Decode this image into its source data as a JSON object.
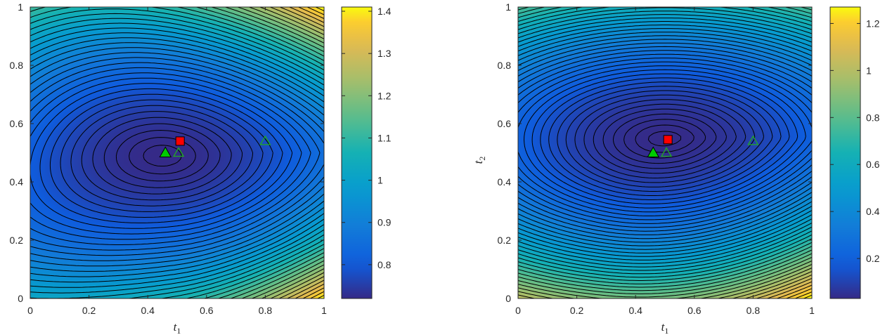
{
  "chart_data": [
    {
      "type": "contour",
      "xlabel": "t",
      "xlabel_sub": "1",
      "ylabel": "",
      "ylabel_sub": "",
      "xlim": [
        0,
        1
      ],
      "ylim": [
        0,
        1
      ],
      "xticks": [
        "0",
        "0.2",
        "0.4",
        "0.6",
        "0.8",
        "1"
      ],
      "yticks": [
        "0",
        "0.2",
        "0.4",
        "0.6",
        "0.8",
        "1"
      ],
      "colormap": "parula",
      "colorbar": {
        "min": 0.72,
        "max": 1.41,
        "ticks": [
          "0.8",
          "0.9",
          "1",
          "1.1",
          "1.2",
          "1.3",
          "1.4"
        ],
        "tick_values": [
          0.8,
          0.9,
          1.0,
          1.1,
          1.2,
          1.3,
          1.4
        ]
      },
      "minimum": {
        "x": 0.45,
        "y": 0.49,
        "value": 0.72
      },
      "markers": [
        {
          "shape": "square",
          "fill": "#ff0000",
          "x": 0.51,
          "y": 0.54
        },
        {
          "shape": "triangle",
          "fill": "#00cc00",
          "x": 0.46,
          "y": 0.5
        },
        {
          "shape": "triangle-open",
          "stroke": "#22aa22",
          "x": 0.505,
          "y": 0.5
        },
        {
          "shape": "triangle-open",
          "stroke": "#22aa22",
          "x": 0.8,
          "y": 0.54
        }
      ]
    },
    {
      "type": "contour",
      "xlabel": "t",
      "xlabel_sub": "1",
      "ylabel": "t",
      "ylabel_sub": "2",
      "xlim": [
        0,
        1
      ],
      "ylim": [
        0,
        1
      ],
      "xticks": [
        "0",
        "0.2",
        "0.4",
        "0.6",
        "0.8",
        "1"
      ],
      "yticks": [
        "0",
        "0.2",
        "0.4",
        "0.6",
        "0.8",
        "1"
      ],
      "colormap": "parula",
      "colorbar": {
        "min": 0.03,
        "max": 1.27,
        "ticks": [
          "0.2",
          "0.4",
          "0.6",
          "0.8",
          "1",
          "1.2"
        ],
        "tick_values": [
          0.2,
          0.4,
          0.6,
          0.8,
          1.0,
          1.2
        ]
      },
      "minimum": {
        "x": 0.5,
        "y": 0.545,
        "value": 0.03
      },
      "markers": [
        {
          "shape": "square",
          "fill": "#ff0000",
          "x": 0.51,
          "y": 0.545
        },
        {
          "shape": "triangle",
          "fill": "#00cc00",
          "x": 0.46,
          "y": 0.5
        },
        {
          "shape": "triangle-open",
          "stroke": "#22aa22",
          "x": 0.505,
          "y": 0.5
        },
        {
          "shape": "triangle-open",
          "stroke": "#22aa22",
          "x": 0.8,
          "y": 0.54
        }
      ]
    }
  ]
}
